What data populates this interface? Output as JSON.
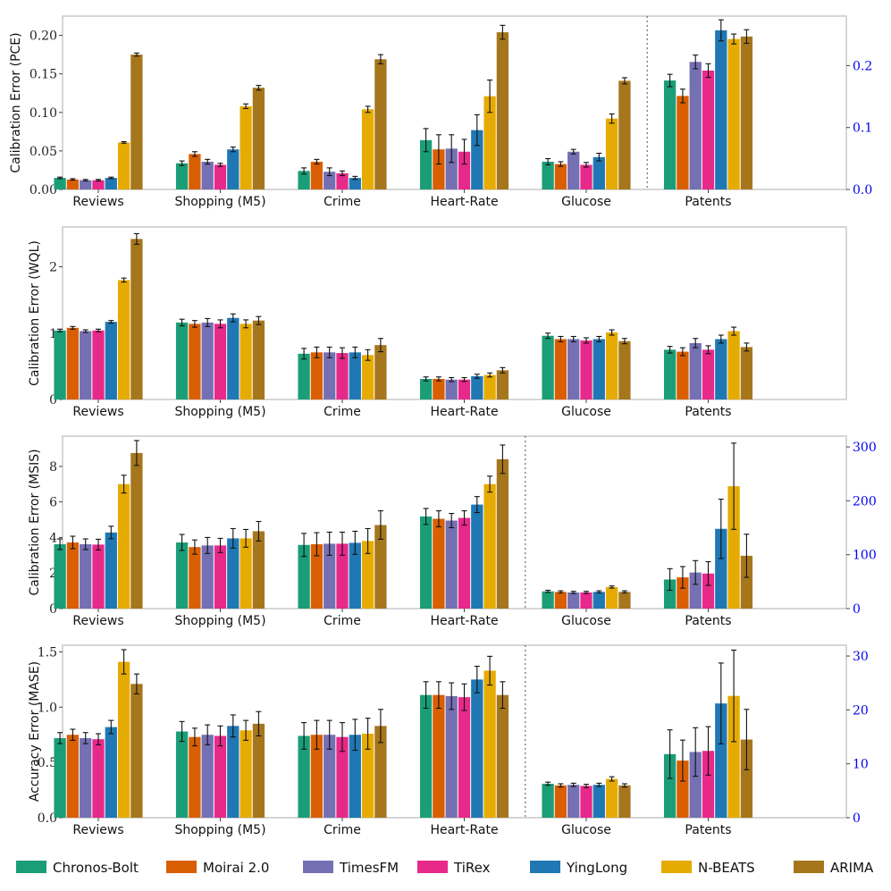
{
  "chart_data": {
    "type": "bar",
    "categories": [
      "Reviews",
      "Shopping (M5)",
      "Crime",
      "Heart-Rate",
      "Glucose",
      "Patents"
    ],
    "legend": {
      "placement": "bottom",
      "entries": [
        {
          "name": "Chronos-Bolt",
          "color": "#1b9e77"
        },
        {
          "name": "Moirai 2.0",
          "color": "#d95f02"
        },
        {
          "name": "TimesFM",
          "color": "#7570b3"
        },
        {
          "name": "TiRex",
          "color": "#e7298a"
        },
        {
          "name": "YingLong",
          "color": "#1f78b4"
        },
        {
          "name": "N-BEATS",
          "color": "#e6ab02"
        },
        {
          "name": "ARIMA",
          "color": "#a6761d"
        }
      ]
    },
    "panels": [
      {
        "ylabel": "Calibration Error (PCE)",
        "ylim": [
          0,
          0.225
        ],
        "yticks": [
          0.0,
          0.05,
          0.1,
          0.15,
          0.2
        ],
        "ytick_labels": [
          "0.00",
          "0.05",
          "0.10",
          "0.15",
          "0.20"
        ],
        "secondary_axis": {
          "split_after_category": 4,
          "ylim": [
            0,
            0.28
          ],
          "yticks": [
            0.0,
            0.1,
            0.2
          ],
          "ytick_labels": [
            "0.0",
            "0.1",
            "0.2"
          ]
        },
        "values": [
          [
            0.015,
            0.013,
            0.012,
            0.012,
            0.015,
            0.061,
            0.175
          ],
          [
            0.034,
            0.046,
            0.036,
            0.032,
            0.052,
            0.108,
            0.132
          ],
          [
            0.024,
            0.036,
            0.023,
            0.021,
            0.015,
            0.104,
            0.169
          ],
          [
            0.064,
            0.052,
            0.053,
            0.049,
            0.077,
            0.121,
            0.204
          ],
          [
            0.036,
            0.033,
            0.049,
            0.032,
            0.042,
            0.092,
            0.141
          ],
          [
            0.176,
            0.151,
            0.206,
            0.192,
            0.257,
            0.243,
            0.247
          ]
        ],
        "errors": [
          [
            0.001,
            0.001,
            0.001,
            0.001,
            0.001,
            0.001,
            0.002
          ],
          [
            0.003,
            0.003,
            0.003,
            0.002,
            0.003,
            0.003,
            0.003
          ],
          [
            0.004,
            0.003,
            0.005,
            0.003,
            0.002,
            0.004,
            0.006
          ],
          [
            0.015,
            0.019,
            0.018,
            0.016,
            0.02,
            0.021,
            0.009
          ],
          [
            0.004,
            0.003,
            0.003,
            0.003,
            0.005,
            0.006,
            0.004
          ],
          [
            0.01,
            0.011,
            0.011,
            0.011,
            0.017,
            0.008,
            0.011
          ]
        ]
      },
      {
        "ylabel": "Calibration Error (WQL)",
        "ylim": [
          0,
          2.6
        ],
        "yticks": [
          0,
          1,
          2
        ],
        "ytick_labels": [
          "0",
          "1",
          "2"
        ],
        "values": [
          [
            1.04,
            1.08,
            1.03,
            1.04,
            1.17,
            1.8,
            2.42
          ],
          [
            1.16,
            1.14,
            1.16,
            1.14,
            1.23,
            1.14,
            1.19
          ],
          [
            0.69,
            0.71,
            0.71,
            0.7,
            0.71,
            0.67,
            0.82
          ],
          [
            0.31,
            0.31,
            0.3,
            0.3,
            0.35,
            0.37,
            0.44
          ],
          [
            0.96,
            0.91,
            0.91,
            0.89,
            0.91,
            1.01,
            0.88
          ],
          [
            0.75,
            0.72,
            0.85,
            0.75,
            0.91,
            1.03,
            0.79
          ]
        ],
        "errors": [
          [
            0.02,
            0.02,
            0.02,
            0.02,
            0.02,
            0.03,
            0.08
          ],
          [
            0.05,
            0.05,
            0.06,
            0.06,
            0.06,
            0.06,
            0.06
          ],
          [
            0.08,
            0.08,
            0.08,
            0.08,
            0.08,
            0.08,
            0.1
          ],
          [
            0.03,
            0.03,
            0.03,
            0.03,
            0.03,
            0.03,
            0.04
          ],
          [
            0.04,
            0.04,
            0.04,
            0.04,
            0.04,
            0.04,
            0.04
          ],
          [
            0.05,
            0.06,
            0.07,
            0.06,
            0.06,
            0.06,
            0.06
          ]
        ]
      },
      {
        "ylabel": "Calibration Error (MSIS)",
        "ylim": [
          0,
          9.7
        ],
        "yticks": [
          0,
          2,
          4,
          6,
          8
        ],
        "ytick_labels": [
          "0",
          "2",
          "4",
          "6",
          "8"
        ],
        "secondary_axis": {
          "split_after_category": 3,
          "ylim": [
            0,
            320
          ],
          "yticks": [
            0,
            100,
            200,
            300
          ],
          "ytick_labels": [
            "0",
            "100",
            "200",
            "300"
          ]
        },
        "values": [
          [
            3.62,
            3.72,
            3.62,
            3.6,
            4.28,
            7.0,
            8.75
          ],
          [
            3.72,
            3.46,
            3.55,
            3.55,
            3.95,
            3.95,
            4.35
          ],
          [
            3.58,
            3.62,
            3.65,
            3.65,
            3.7,
            3.8,
            4.7
          ],
          [
            5.18,
            5.05,
            4.95,
            5.1,
            5.85,
            7.0,
            8.4
          ],
          [
            32,
            31,
            30,
            30,
            31,
            40,
            31
          ],
          [
            54,
            58,
            67,
            65,
            148,
            227,
            98
          ]
        ],
        "errors": [
          [
            0.3,
            0.35,
            0.3,
            0.3,
            0.35,
            0.5,
            0.7
          ],
          [
            0.45,
            0.4,
            0.45,
            0.4,
            0.55,
            0.5,
            0.55
          ],
          [
            0.65,
            0.65,
            0.65,
            0.65,
            0.65,
            0.7,
            0.8
          ],
          [
            0.45,
            0.45,
            0.4,
            0.4,
            0.45,
            0.45,
            0.8
          ],
          [
            2,
            2,
            2,
            2,
            2,
            2,
            2
          ],
          [
            20,
            20,
            22,
            22,
            55,
            80,
            40
          ]
        ]
      },
      {
        "ylabel": "Accuracy Error (MASE)",
        "ylim": [
          0,
          1.56
        ],
        "yticks": [
          0.0,
          0.5,
          1.0,
          1.5
        ],
        "ytick_labels": [
          "0.0",
          "0.5",
          "1.0",
          "1.5"
        ],
        "secondary_axis": {
          "split_after_category": 3,
          "ylim": [
            0,
            32
          ],
          "yticks": [
            0,
            10,
            20,
            30
          ],
          "ytick_labels": [
            "0",
            "10",
            "20",
            "30"
          ]
        },
        "values": [
          [
            0.72,
            0.75,
            0.72,
            0.71,
            0.82,
            1.41,
            1.21
          ],
          [
            0.78,
            0.73,
            0.75,
            0.74,
            0.83,
            0.79,
            0.85
          ],
          [
            0.74,
            0.75,
            0.75,
            0.73,
            0.75,
            0.76,
            0.83
          ],
          [
            1.11,
            1.11,
            1.1,
            1.09,
            1.25,
            1.33,
            1.11
          ],
          [
            6.3,
            6.0,
            6.1,
            5.9,
            6.1,
            7.2,
            6.0
          ],
          [
            11.8,
            10.6,
            12.2,
            12.4,
            21.2,
            22.6,
            14.5
          ]
        ],
        "errors": [
          [
            0.05,
            0.05,
            0.05,
            0.05,
            0.06,
            0.11,
            0.09
          ],
          [
            0.09,
            0.08,
            0.09,
            0.09,
            0.1,
            0.09,
            0.11
          ],
          [
            0.12,
            0.13,
            0.13,
            0.13,
            0.14,
            0.14,
            0.15
          ],
          [
            0.12,
            0.12,
            0.12,
            0.12,
            0.12,
            0.13,
            0.12
          ],
          [
            0.3,
            0.3,
            0.3,
            0.3,
            0.3,
            0.4,
            0.3
          ],
          [
            4.5,
            3.8,
            4.5,
            4.5,
            7.5,
            8.5,
            5.6
          ]
        ]
      }
    ]
  }
}
